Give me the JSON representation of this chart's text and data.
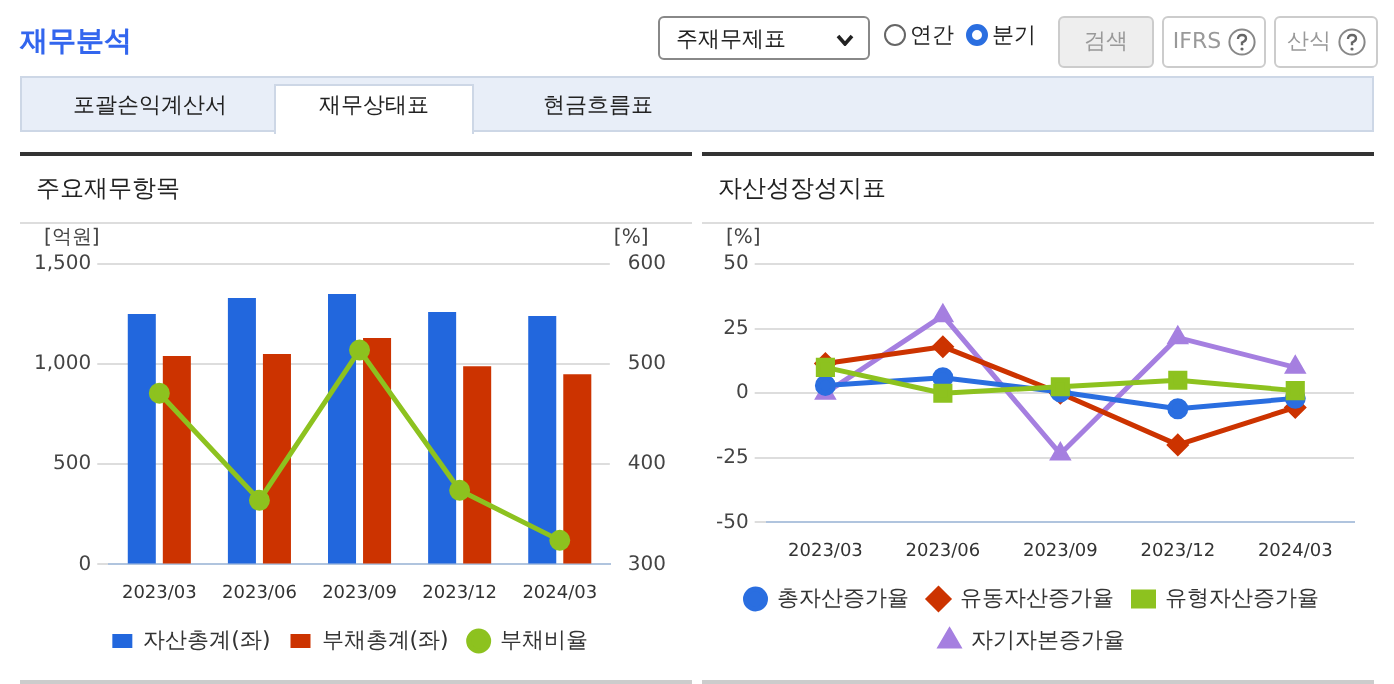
{
  "chart_data": [
    {
      "type": "other",
      "title": "재무분석",
      "annotations": [
        "주재무제표",
        "연간",
        "분기",
        "검색",
        "IFRS",
        "산식",
        "포괄손익계산서",
        "재무상태표",
        "현금흐름표"
      ]
    },
    {
      "type": "bar",
      "title": "주요재무항목",
      "categories": [
        "2023/03",
        "2023/06",
        "2023/09",
        "2023/12",
        "2024/03"
      ],
      "ylabel": "[억원]",
      "y2label": "[%]",
      "ylim": [
        0,
        1500
      ],
      "yticks": [
        0,
        500,
        {
          "value": 1000,
          "label": "1,000"
        },
        {
          "value": 1500,
          "label": "1,500"
        }
      ],
      "y2lim": [
        300,
        600
      ],
      "y2ticks": [
        300,
        400,
        500,
        600
      ],
      "series": [
        {
          "name": "자산총계(좌)",
          "color": "#2267dd",
          "values": [
            1250,
            1330,
            1350,
            1260,
            1240
          ]
        },
        {
          "name": "부채총계(좌)",
          "color": "#cc3300",
          "values": [
            1040,
            1050,
            1130,
            990,
            950
          ]
        },
        {
          "name": "부채비율",
          "type": "line",
          "axis": "y2",
          "marker": "circle",
          "color": "#8dc21f",
          "values": [
            471,
            364,
            514,
            374,
            324
          ]
        }
      ],
      "grid": "y",
      "legend": "bottom"
    },
    {
      "type": "line",
      "title": "자산성장성지표",
      "categories": [
        "2023/03",
        "2023/06",
        "2023/09",
        "2023/12",
        "2024/03"
      ],
      "ylabel": "[%]",
      "ylim": [
        -50,
        50
      ],
      "yticks": [
        -50,
        -25,
        0,
        25,
        50
      ],
      "series": [
        {
          "name": "총자산증가율",
          "marker": "circle",
          "color": "#2a6ee0",
          "values": [
            3,
            6,
            0.5,
            -6,
            -2
          ]
        },
        {
          "name": "유동자산증가율",
          "marker": "diamond",
          "color": "#cc3300",
          "values": [
            11.5,
            18,
            0,
            -20,
            -5.5
          ]
        },
        {
          "name": "유형자산증가율",
          "marker": "square",
          "color": "#8dc21f",
          "values": [
            10,
            0,
            2.5,
            5,
            1
          ]
        },
        {
          "name": "자기자본증가율",
          "marker": "triangle",
          "color": "#a57fe0",
          "values": [
            0,
            30,
            -23.5,
            21.5,
            10
          ]
        }
      ],
      "grid": "y",
      "legend": "bottom"
    }
  ]
}
